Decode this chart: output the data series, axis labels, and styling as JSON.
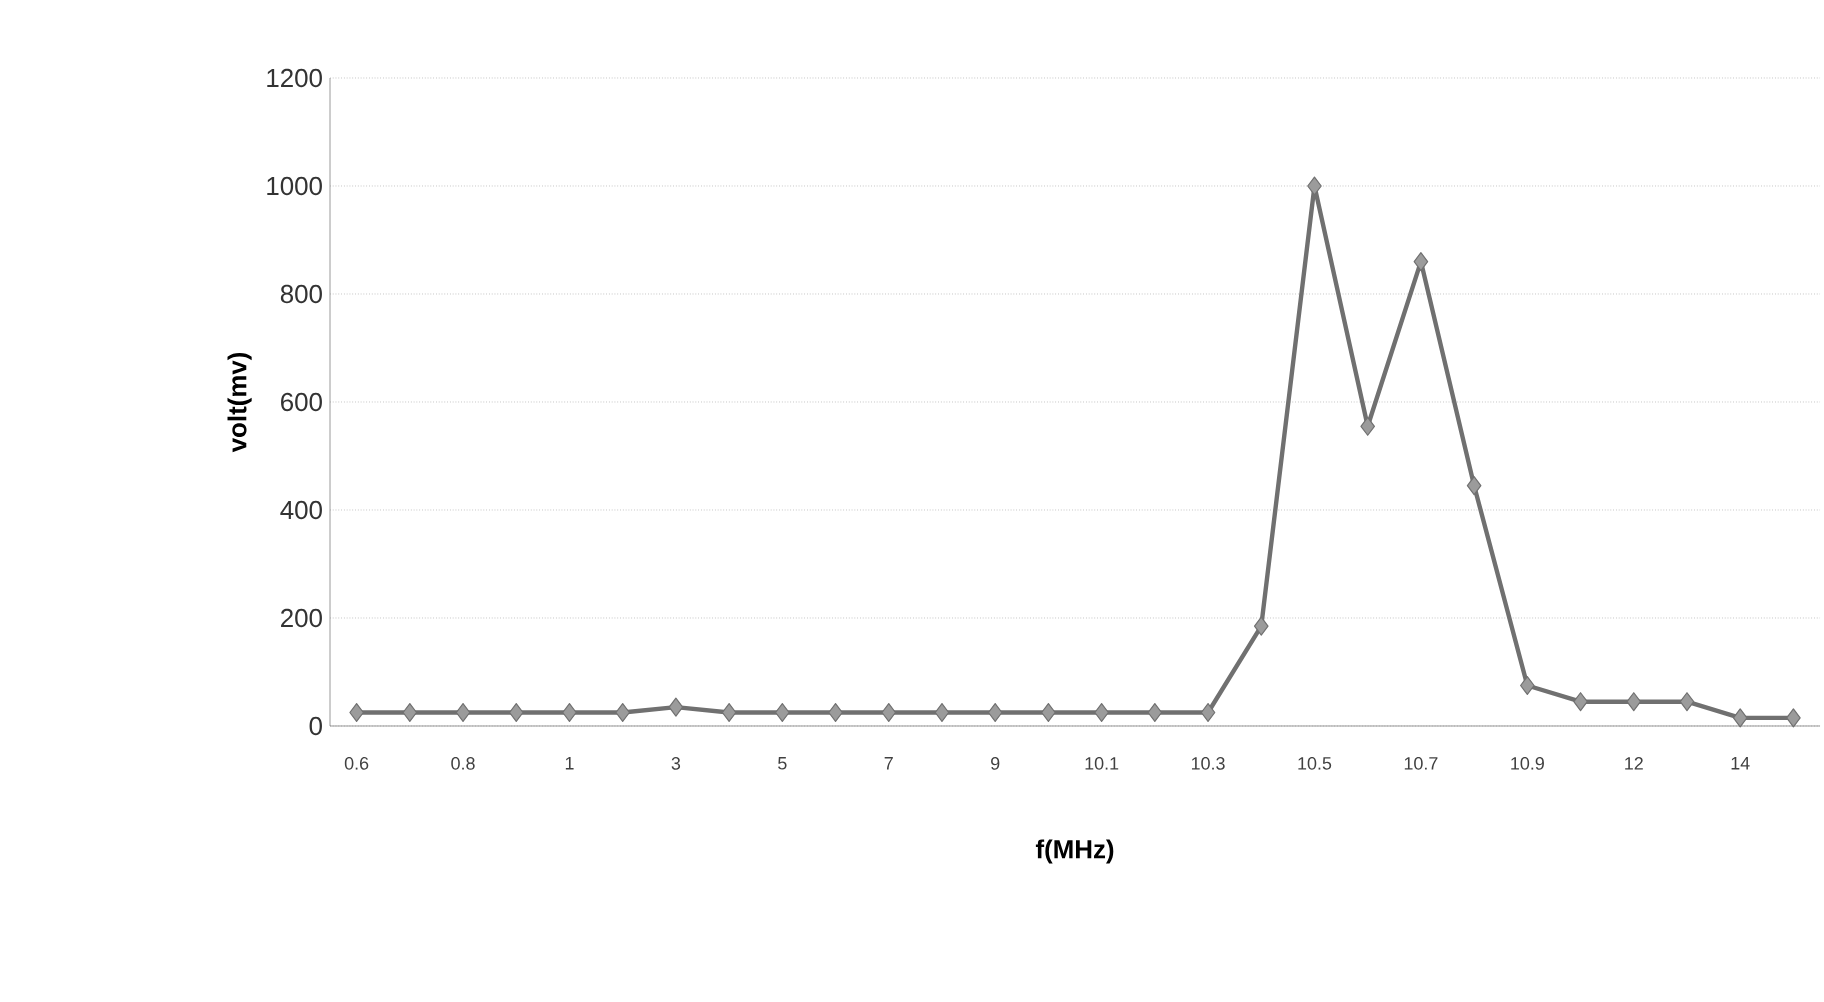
{
  "chart_data": {
    "type": "line",
    "xlabel": "f(MHz)",
    "ylabel": "volt(mv)",
    "categories": [
      "0.6",
      null,
      "0.8",
      null,
      "1",
      null,
      "3",
      null,
      "5",
      null,
      "7",
      null,
      "9",
      null,
      "10.1",
      null,
      "10.3",
      null,
      "10.5",
      null,
      "10.7",
      null,
      "10.9",
      null,
      "12",
      null,
      "14",
      null
    ],
    "series": [
      {
        "color": "#707070",
        "values": [
          25,
          25,
          25,
          25,
          25,
          25,
          35,
          25,
          25,
          25,
          25,
          25,
          25,
          25,
          25,
          25,
          25,
          185,
          1000,
          555,
          860,
          445,
          75,
          45,
          45,
          45,
          15,
          15
        ]
      }
    ],
    "ylim": [
      0,
      1200
    ],
    "yticks": [
      0,
      200,
      400,
      600,
      800,
      1000,
      1200
    ],
    "grid": "y",
    "legend": false,
    "marker": "diamond",
    "line_style": "solid"
  }
}
